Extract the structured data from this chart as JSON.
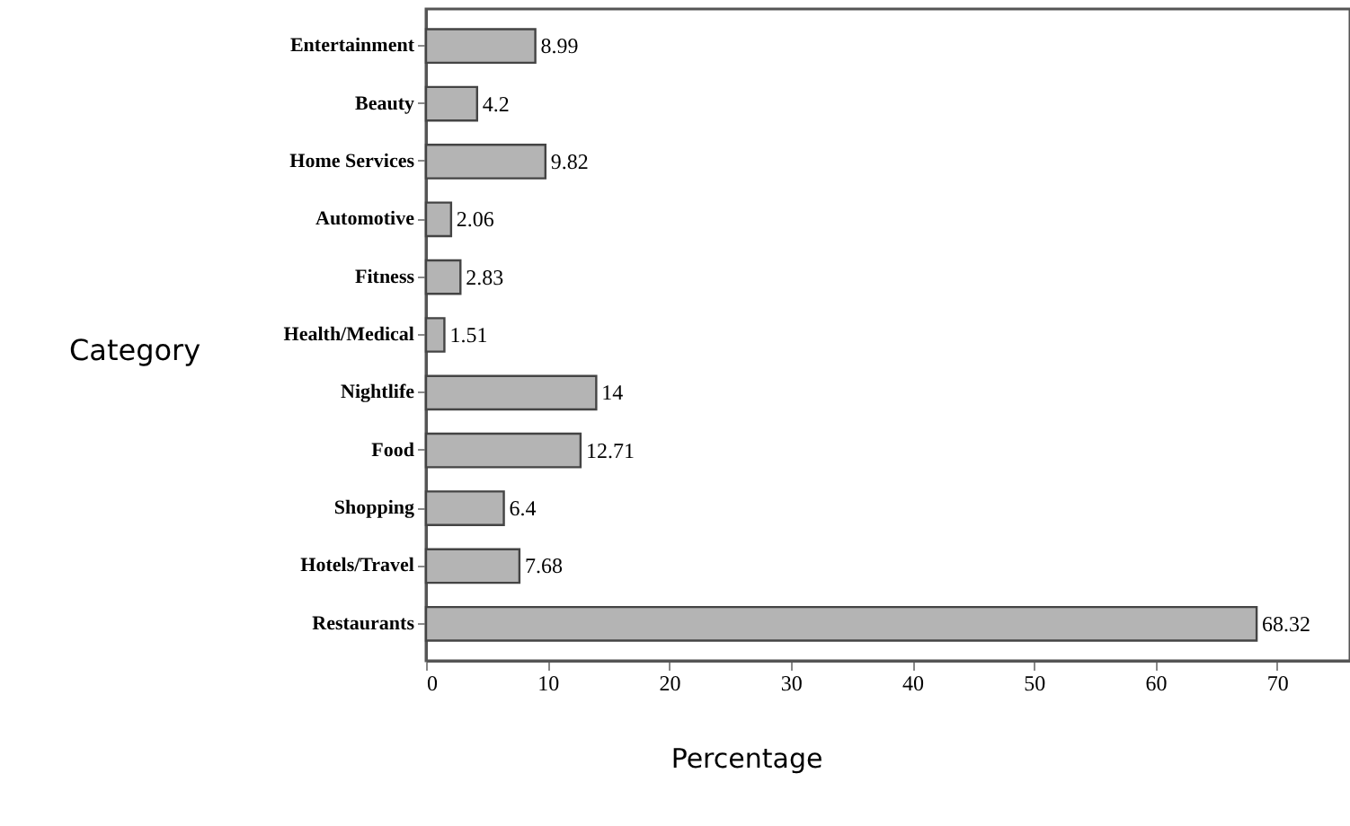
{
  "chart_data": {
    "type": "bar",
    "orientation": "horizontal",
    "xlabel": "Percentage",
    "ylabel": "Category",
    "categories": [
      "Entertainment",
      "Beauty",
      "Home Services",
      "Automotive",
      "Fitness",
      "Health/Medical",
      "Nightlife",
      "Food",
      "Shopping",
      "Hotels/Travel",
      "Restaurants"
    ],
    "values": [
      8.99,
      4.2,
      9.82,
      2.06,
      2.83,
      1.51,
      14,
      12.71,
      6.4,
      7.68,
      68.32
    ],
    "color": "#b4b4b4",
    "data_labels": true,
    "xlim": [
      0,
      76
    ],
    "xticks": [
      0,
      10,
      20,
      30,
      40,
      50,
      60,
      70
    ],
    "grid": false
  }
}
